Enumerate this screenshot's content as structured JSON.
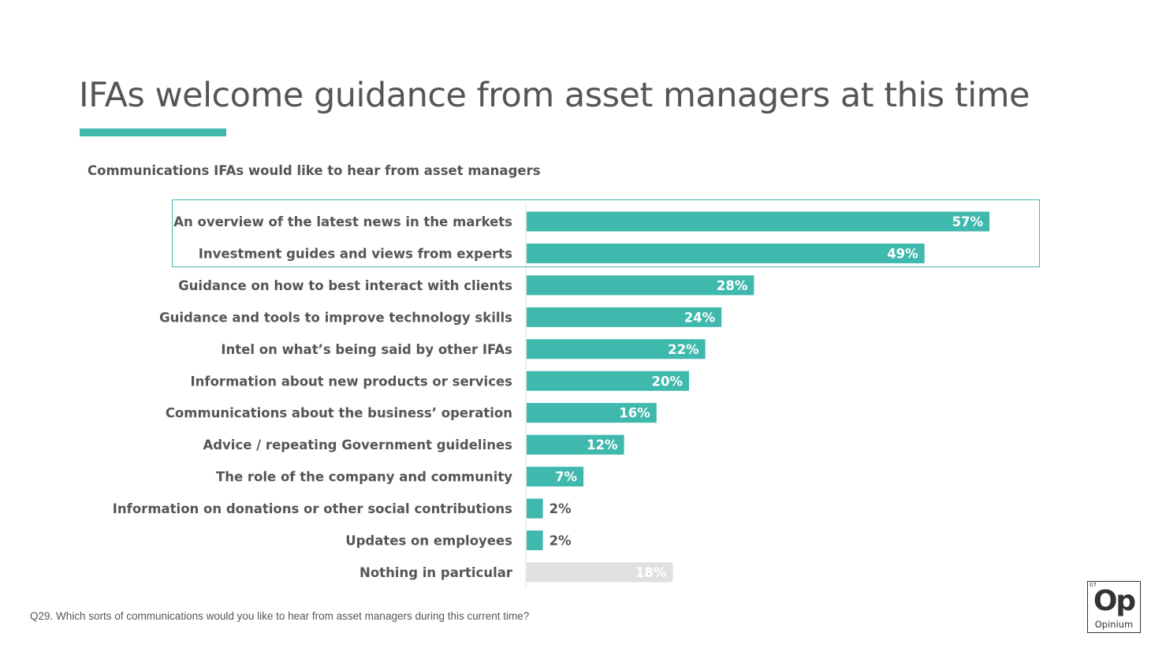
{
  "title": "IFAs welcome guidance from asset managers at this time",
  "footnote": "Q29. Which sorts of communications would you like to hear from asset managers during this current time?",
  "logo": {
    "number": "07",
    "symbol": "Op",
    "name": "Opinium"
  },
  "colors": {
    "accent": "#3fb8ad",
    "neutral_bar": "#e0e0e0",
    "text": "#555555"
  },
  "chart_data": {
    "type": "bar",
    "orientation": "horizontal",
    "title": "Communications IFAs would like to hear from asset managers",
    "categories": [
      "An overview of the latest news in the markets",
      "Investment guides and views from experts",
      "Guidance on how to best interact with clients",
      "Guidance and tools to improve technology skills",
      "Intel on what’s being said by other IFAs",
      "Information about new products or services",
      "Communications about the business’ operation",
      "Advice / repeating Government guidelines",
      "The role of the company and community",
      "Information on donations or other social contributions",
      "Updates on employees",
      "Nothing in particular"
    ],
    "values": [
      57,
      49,
      28,
      24,
      22,
      20,
      16,
      12,
      7,
      2,
      2,
      18
    ],
    "labels": [
      "57%",
      "49%",
      "28%",
      "24%",
      "22%",
      "20%",
      "16%",
      "12%",
      "7%",
      "2%",
      "2%",
      "18%"
    ],
    "unit": "%",
    "xlim": [
      0,
      100
    ],
    "grid": false,
    "highlighted_categories": [
      0,
      1
    ],
    "neutral_categories": [
      11
    ]
  }
}
